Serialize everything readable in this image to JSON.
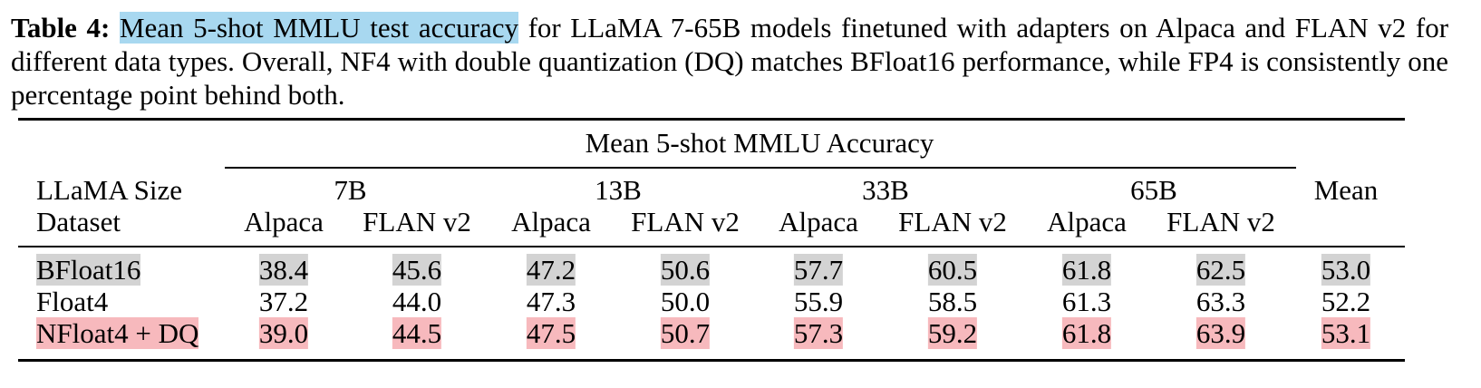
{
  "caption": {
    "label": "Table 4:",
    "highlight": "Mean 5-shot MMLU test accuracy",
    "text": "for LLaMA 7-65B models finetuned with adapters on Alpaca and FLAN v2 for different data types. Overall, NF4 with double quantization (DQ) matches BFloat16 performance, while FP4 is consistently one percentage point behind both."
  },
  "table": {
    "group_header": "Mean 5-shot MMLU Accuracy",
    "row_header": [
      "LLaMA Size",
      "Dataset"
    ],
    "sizes": [
      "7B",
      "13B",
      "33B",
      "65B"
    ],
    "datasets": [
      "Alpaca",
      "FLAN v2",
      "Alpaca",
      "FLAN v2",
      "Alpaca",
      "FLAN v2",
      "Alpaca",
      "FLAN v2"
    ],
    "mean_header": "Mean",
    "rows": [
      [
        "BFloat16",
        "38.4",
        "45.6",
        "47.2",
        "50.6",
        "57.7",
        "60.5",
        "61.8",
        "62.5",
        "53.0"
      ],
      [
        "Float4",
        "37.2",
        "44.0",
        "47.3",
        "50.0",
        "55.9",
        "58.5",
        "61.3",
        "63.3",
        "52.2"
      ],
      [
        "NFloat4 + DQ",
        "39.0",
        "44.5",
        "47.5",
        "50.7",
        "57.3",
        "59.2",
        "61.8",
        "63.9",
        "53.1"
      ]
    ]
  }
}
